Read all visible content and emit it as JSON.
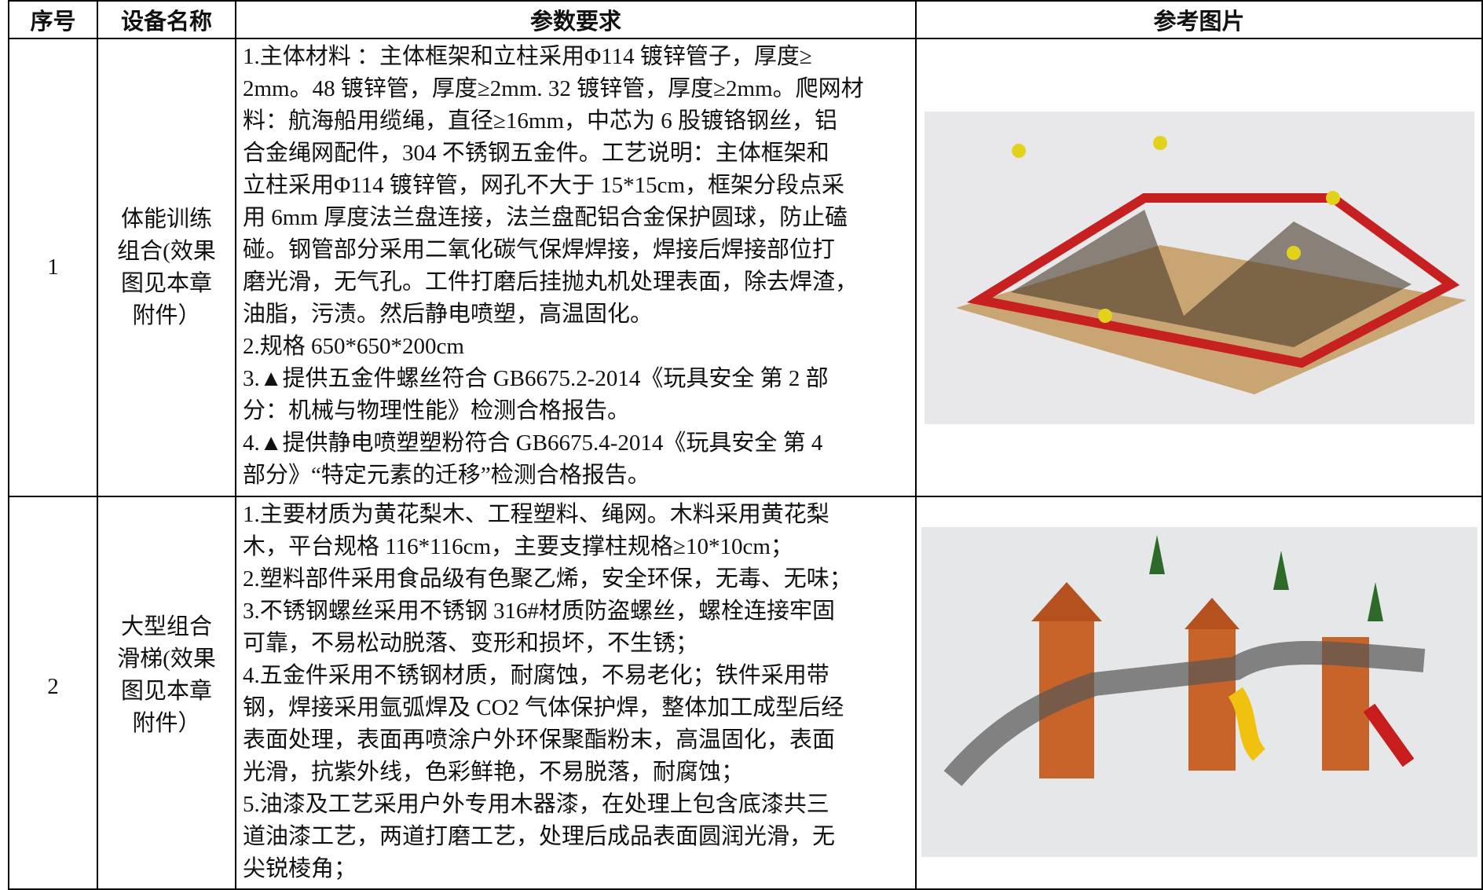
{
  "table": {
    "headers": [
      "序号",
      "设备名称",
      "参数要求",
      "参考图片"
    ],
    "rows": [
      {
        "no": "1",
        "name": [
          "体能训练",
          "组合(效果",
          "图见本章",
          "附件）"
        ],
        "params": [
          "1.主体材料 ：主体框架和立柱采用Φ114 镀锌管子，厚度≥",
          "2mm。48 镀锌管，厚度≥2mm. 32 镀锌管，厚度≥2mm。爬网材",
          "料：航海船用缆绳，直径≥16mm，中芯为 6 股镀铬钢丝，铝",
          "合金绳网配件，304 不锈钢五金件。工艺说明：主体框架和",
          "立柱采用Φ114 镀锌管，网孔不大于 15*15cm，框架分段点采",
          "用 6mm 厚度法兰盘连接，法兰盘配铝合金保护圆球，防止磕",
          "碰。钢管部分采用二氧化碳气保焊焊接，焊接后焊接部位打",
          "磨光滑，无气孔。工件打磨后挂抛丸机处理表面，除去焊渣，",
          "油脂，污渍。然后静电喷塑，高温固化。",
          "2.规格 650*650*200cm",
          "3.▲提供五金件螺丝符合 GB6675.2-2014《玩具安全 第 2 部",
          "分：机械与物理性能》检测合格报告。",
          "4.▲提供静电喷塑塑粉符合 GB6675.4-2014《玩具安全 第 4",
          "部分》“特定元素的迁移”检测合格报告。"
        ]
      },
      {
        "no": "2",
        "name": [
          "大型组合",
          "滑梯(效果",
          "图见本章",
          "附件）"
        ],
        "params": [
          "1.主要材质为黄花梨木、工程塑料、绳网。木料采用黄花梨",
          "木，平台规格 116*116cm，主要支撑柱规格≥10*10cm；",
          "2.塑料部件采用食品级有色聚乙烯，安全环保，无毒、无味；",
          "3.不锈钢螺丝采用不锈钢 316#材质防盗螺丝，螺栓连接牢固",
          "可靠，不易松动脱落、变形和损坏，不生锈；",
          "4.五金件采用不锈钢材质，耐腐蚀，不易老化；铁件采用带",
          "钢，焊接采用氩弧焊及 CO2 气体保护焊，整体加工成型后经",
          "表面处理，表面再喷涂户外环保聚酯粉末，高温固化，表面",
          "光滑，抗紫外线，色彩鲜艳，不易脱落，耐腐蚀；",
          "5.油漆及工艺采用户外专用木器漆，在处理上包含底漆共三",
          "道油漆工艺，两道打磨工艺，处理后成品表面圆润光滑，无",
          "尖锐棱角；"
        ]
      }
    ]
  }
}
